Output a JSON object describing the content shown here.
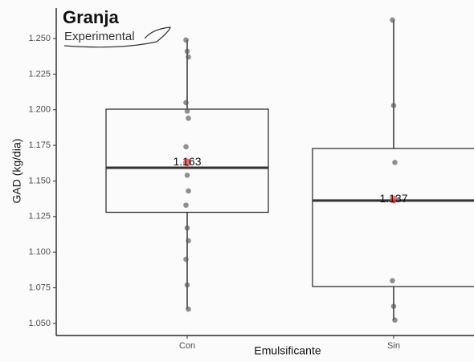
{
  "logo": {
    "title": "Granja",
    "subtitle": "Experimental"
  },
  "chart_data": {
    "type": "box",
    "x_label": "Emulsificante",
    "y_label": "GAD (kg/dia)",
    "categories": [
      "Con",
      "Sin"
    ],
    "whisker_low": [
      1.06,
      1.0523
    ],
    "q1": [
      1.128,
      1.0759
    ],
    "median": [
      1.1593,
      1.1362
    ],
    "q3": [
      1.2004,
      1.1728
    ],
    "whisker_high": [
      1.249,
      1.263
    ],
    "means": [
      1.163,
      1.137
    ],
    "points": [
      [
        1.249,
        1.241,
        1.237,
        1.205,
        1.199,
        1.194,
        1.174,
        1.154,
        1.143,
        1.133,
        1.117,
        1.108,
        1.095,
        1.077,
        1.06
      ],
      [
        1.263,
        1.203,
        1.163,
        1.08,
        1.062,
        1.0523
      ]
    ],
    "box_color": "#333333",
    "point_color": "#555555",
    "mean_color": "#e8434a",
    "ylim": [
      1.0415,
      1.2714
    ],
    "yticks": [
      {
        "value": 1.05,
        "label": "1.050"
      },
      1.075,
      {
        "value": 1.1,
        "label": "1.100"
      },
      1.125,
      {
        "value": 1.15,
        "label": "1.150"
      },
      1.175,
      {
        "value": 1.2,
        "label": "1.200"
      },
      1.225,
      {
        "value": 1.25,
        "label": "1.250"
      }
    ]
  }
}
